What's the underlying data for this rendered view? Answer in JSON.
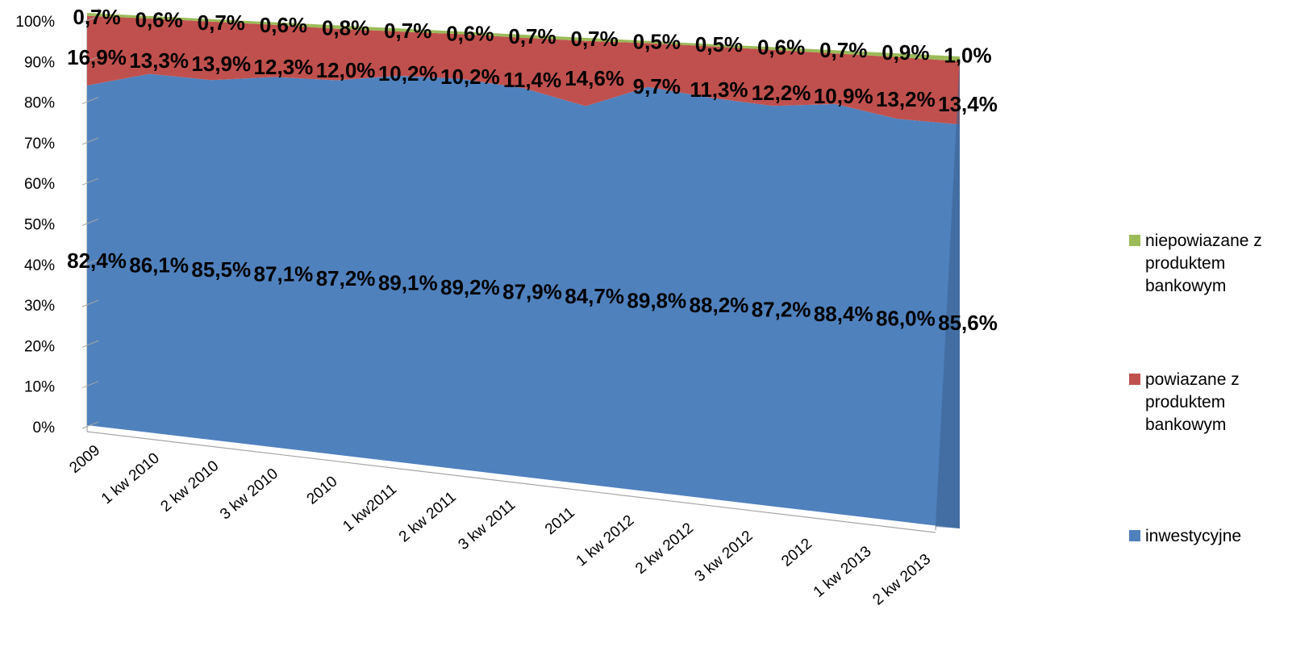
{
  "chart_data": {
    "type": "area",
    "stacked": "percent",
    "categories": [
      "2009",
      "1 kw 2010",
      "2 kw 2010",
      "3 kw 2010",
      "2010",
      "1 kw2011",
      "2 kw 2011",
      "3 kw 2011",
      "2011",
      "1 kw 2012",
      "2 kw 2012",
      "3 kw 2012",
      "2012",
      "1 kw 2013",
      "2 kw 2013"
    ],
    "y_ticks": [
      "0%",
      "10%",
      "20%",
      "30%",
      "40%",
      "50%",
      "60%",
      "70%",
      "80%",
      "90%",
      "100%"
    ],
    "ylim": [
      0,
      100
    ],
    "grid": false,
    "legend_position": "right",
    "series": [
      {
        "name": "inwestycyjne",
        "color": "#4F81BD",
        "values": [
          82.4,
          86.1,
          85.5,
          87.1,
          87.2,
          89.1,
          89.2,
          87.9,
          84.7,
          89.8,
          88.2,
          87.2,
          88.4,
          86.0,
          85.6
        ],
        "labels": [
          "82,4%",
          "86,1%",
          "85,5%",
          "87,1%",
          "87,2%",
          "89,1%",
          "89,2%",
          "87,9%",
          "84,7%",
          "89,8%",
          "88,2%",
          "87,2%",
          "88,4%",
          "86,0%",
          "85,6%"
        ]
      },
      {
        "name": "powiazane z produktem bankowym",
        "color": "#C0504D",
        "values": [
          16.9,
          13.3,
          13.9,
          12.3,
          12.0,
          10.2,
          10.2,
          11.4,
          14.6,
          9.7,
          11.3,
          12.2,
          10.9,
          13.2,
          13.4
        ],
        "labels": [
          "16,9%",
          "13,3%",
          "13,9%",
          "12,3%",
          "12,0%",
          "10,2%",
          "10,2%",
          "11,4%",
          "14,6%",
          "9,7%",
          "11,3%",
          "12,2%",
          "10,9%",
          "13,2%",
          "13,4%"
        ]
      },
      {
        "name": "niepowiazane z produktem bankowym",
        "color": "#9BBB59",
        "values": [
          0.7,
          0.6,
          0.7,
          0.6,
          0.8,
          0.7,
          0.6,
          0.7,
          0.7,
          0.5,
          0.5,
          0.6,
          0.7,
          0.9,
          1.0
        ],
        "labels": [
          "0,7%",
          "0,6%",
          "0,7%",
          "0,6%",
          "0,8%",
          "0,7%",
          "0,6%",
          "0,7%",
          "0,7%",
          "0,5%",
          "0,5%",
          "0,6%",
          "0,7%",
          "0,9%",
          "1,0%"
        ]
      }
    ]
  },
  "legend": [
    {
      "label": "niepowiazane z produktem bankowym",
      "color": "#9BBB59"
    },
    {
      "label": "powiazane z produktem bankowym",
      "color": "#C0504D"
    },
    {
      "label": "inwestycyjne",
      "color": "#4F81BD"
    }
  ]
}
